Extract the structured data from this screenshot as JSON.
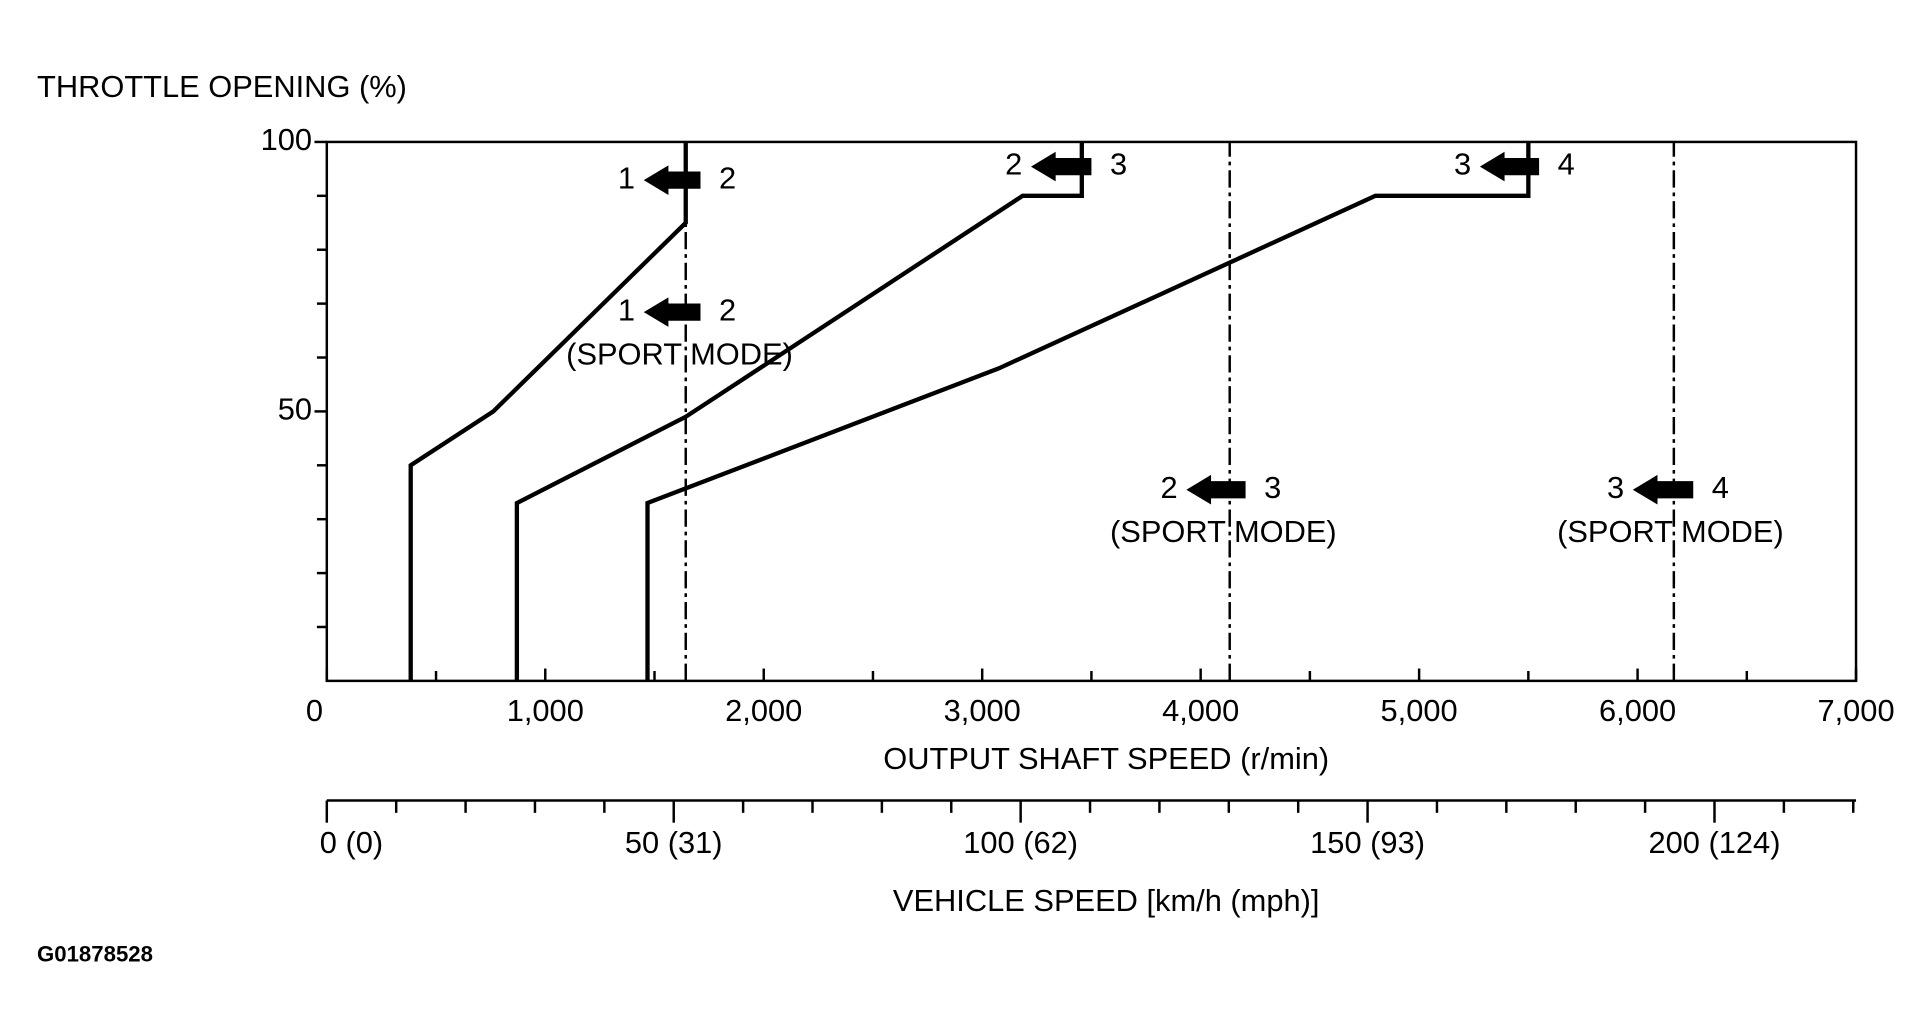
{
  "chart_data": {
    "type": "line",
    "title": "THROTTLE OPENING (%)",
    "xlabel": "OUTPUT SHAFT SPEED (r/min)",
    "x2label": "VEHICLE SPEED [km/h (mph)]",
    "figure_id": "G01878528",
    "xlim": [
      0,
      7000
    ],
    "xticks": [
      0,
      {
        "value": 1000,
        "label": "1,000"
      },
      {
        "value": 2000,
        "label": "2,000"
      },
      {
        "value": 3000,
        "label": "3,000"
      },
      {
        "value": 4000,
        "label": "4,000"
      },
      {
        "value": 5000,
        "label": "5,000"
      },
      {
        "value": 6000,
        "label": "6,000"
      },
      {
        "value": 7000,
        "label": "7,000"
      }
    ],
    "xminorticks": [
      500,
      1500,
      2500,
      3500,
      4500,
      5500,
      6500
    ],
    "ylim": [
      0,
      100
    ],
    "yticks": [
      50,
      100
    ],
    "yminorticks": [
      10,
      20,
      30,
      40,
      60,
      70,
      80,
      90
    ],
    "x2lim": [
      0,
      220.4
    ],
    "x2ticks": [
      {
        "value": 0,
        "label": "0 (0)"
      },
      {
        "value": 50,
        "label": "50 (31)"
      },
      {
        "value": 100,
        "label": "100 (62)"
      },
      {
        "value": 150,
        "label": "150 (93)"
      },
      {
        "value": 200,
        "label": "200 (124)"
      }
    ],
    "x2minorticks": [
      10,
      20,
      30,
      40,
      60,
      70,
      80,
      90,
      110,
      120,
      130,
      140,
      160,
      170,
      180,
      190,
      210,
      220
    ],
    "series": [
      {
        "color": "#000000",
        "dashed": false,
        "x": [
          384,
          384,
          762,
          1643,
          1643
        ],
        "values": [
          0,
          40,
          50,
          85,
          100
        ]
      },
      {
        "color": "#000000",
        "dashed": false,
        "x": [
          870,
          870,
          1643,
          3185,
          3456,
          3456
        ],
        "values": [
          0,
          33,
          49,
          90,
          90,
          100
        ]
      },
      {
        "color": "#000000",
        "dashed": false,
        "x": [
          1468,
          1468,
          3077,
          4800,
          5500,
          5500
        ],
        "values": [
          0,
          33,
          58,
          90,
          90,
          100
        ]
      },
      {
        "color": "#000000",
        "dashed": true,
        "x": [
          1643,
          1643
        ],
        "values": [
          0,
          100
        ]
      },
      {
        "color": "#000000",
        "dashed": true,
        "x": [
          4133,
          4133
        ],
        "values": [
          0,
          100
        ]
      },
      {
        "color": "#000000",
        "dashed": true,
        "x": [
          6166,
          6166
        ],
        "values": [
          0,
          100
        ]
      }
    ],
    "annotations": [
      {
        "from": "1",
        "to": "2"
      },
      {
        "from": "2",
        "to": "3"
      },
      {
        "from": "3",
        "to": "4"
      },
      {
        "from": "1",
        "to": "2",
        "note": "(SPORT MODE)"
      },
      {
        "from": "2",
        "to": "3",
        "note": "(SPORT MODE)"
      },
      {
        "from": "3",
        "to": "4",
        "note": "(SPORT MODE)"
      }
    ]
  }
}
